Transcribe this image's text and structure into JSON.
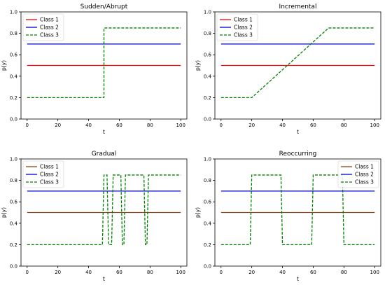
{
  "chart_data": [
    {
      "type": "line",
      "title": "Sudden/Abrupt",
      "xlabel": "t",
      "ylabel": "p(y)",
      "xlim": [
        -4,
        104
      ],
      "ylim": [
        0,
        1.0
      ],
      "xticks": [
        0,
        20,
        40,
        60,
        80,
        100
      ],
      "yticks": [
        0.0,
        0.2,
        0.4,
        0.6,
        0.8,
        1.0
      ],
      "legend": "top-left",
      "series": [
        {
          "name": "Class 1",
          "color": "#ff0000",
          "style": "solid",
          "x": [
            0,
            100
          ],
          "y": [
            0.5,
            0.5
          ]
        },
        {
          "name": "Class 2",
          "color": "#0000cc",
          "style": "solid",
          "x": [
            0,
            100
          ],
          "y": [
            0.7,
            0.7
          ]
        },
        {
          "name": "Class 3",
          "color": "#008000",
          "style": "dashed",
          "x": [
            0,
            50,
            50,
            100
          ],
          "y": [
            0.2,
            0.2,
            0.85,
            0.85
          ]
        }
      ]
    },
    {
      "type": "line",
      "title": "Incremental",
      "xlabel": "t",
      "ylabel": "p(y)",
      "xlim": [
        -4,
        104
      ],
      "ylim": [
        0,
        1.0
      ],
      "xticks": [
        0,
        20,
        40,
        60,
        80,
        100
      ],
      "yticks": [
        0.0,
        0.2,
        0.4,
        0.6,
        0.8,
        1.0
      ],
      "legend": "top-left",
      "series": [
        {
          "name": "Class 1",
          "color": "#ff0000",
          "style": "solid",
          "x": [
            0,
            100
          ],
          "y": [
            0.5,
            0.5
          ]
        },
        {
          "name": "Class 2",
          "color": "#0000cc",
          "style": "solid",
          "x": [
            0,
            100
          ],
          "y": [
            0.7,
            0.7
          ]
        },
        {
          "name": "Class 3",
          "color": "#008000",
          "style": "dashed",
          "x": [
            0,
            20,
            70,
            100
          ],
          "y": [
            0.2,
            0.2,
            0.85,
            0.85
          ]
        }
      ]
    },
    {
      "type": "line",
      "title": "Gradual",
      "xlabel": "t",
      "ylabel": "p(y)",
      "xlim": [
        -4,
        104
      ],
      "ylim": [
        0,
        1.0
      ],
      "xticks": [
        0,
        20,
        40,
        60,
        80,
        100
      ],
      "yticks": [
        0.0,
        0.2,
        0.4,
        0.6,
        0.8,
        1.0
      ],
      "legend": "top-left",
      "series": [
        {
          "name": "Class 1",
          "color": "#8b4513",
          "style": "solid",
          "x": [
            0,
            100
          ],
          "y": [
            0.5,
            0.5
          ]
        },
        {
          "name": "Class 2",
          "color": "#0000cc",
          "style": "solid",
          "x": [
            0,
            100
          ],
          "y": [
            0.7,
            0.7
          ]
        },
        {
          "name": "Class 3",
          "color": "#008000",
          "style": "dashed",
          "x": [
            0,
            49,
            50,
            52,
            53,
            55,
            56,
            59,
            60,
            61,
            62,
            63,
            64,
            66,
            76,
            77,
            78,
            79,
            80,
            100
          ],
          "y": [
            0.2,
            0.2,
            0.85,
            0.85,
            0.2,
            0.2,
            0.85,
            0.85,
            0.85,
            0.85,
            0.2,
            0.2,
            0.85,
            0.85,
            0.85,
            0.2,
            0.2,
            0.85,
            0.85,
            0.85
          ]
        }
      ]
    },
    {
      "type": "line",
      "title": "Reoccurring",
      "xlabel": "t",
      "ylabel": "p(y)",
      "xlim": [
        -4,
        104
      ],
      "ylim": [
        0,
        1.0
      ],
      "xticks": [
        0,
        20,
        40,
        60,
        80,
        100
      ],
      "yticks": [
        0.0,
        0.2,
        0.4,
        0.6,
        0.8,
        1.0
      ],
      "legend": "top-right",
      "series": [
        {
          "name": "Class 1",
          "color": "#8b4513",
          "style": "solid",
          "x": [
            0,
            100
          ],
          "y": [
            0.5,
            0.5
          ]
        },
        {
          "name": "Class 2",
          "color": "#0000cc",
          "style": "solid",
          "x": [
            0,
            100
          ],
          "y": [
            0.7,
            0.7
          ]
        },
        {
          "name": "Class 3",
          "color": "#008000",
          "style": "dashed",
          "x": [
            0,
            19,
            20,
            39,
            40,
            59,
            60,
            79,
            80,
            100
          ],
          "y": [
            0.2,
            0.2,
            0.85,
            0.85,
            0.2,
            0.2,
            0.85,
            0.85,
            0.2,
            0.2
          ]
        }
      ]
    }
  ]
}
